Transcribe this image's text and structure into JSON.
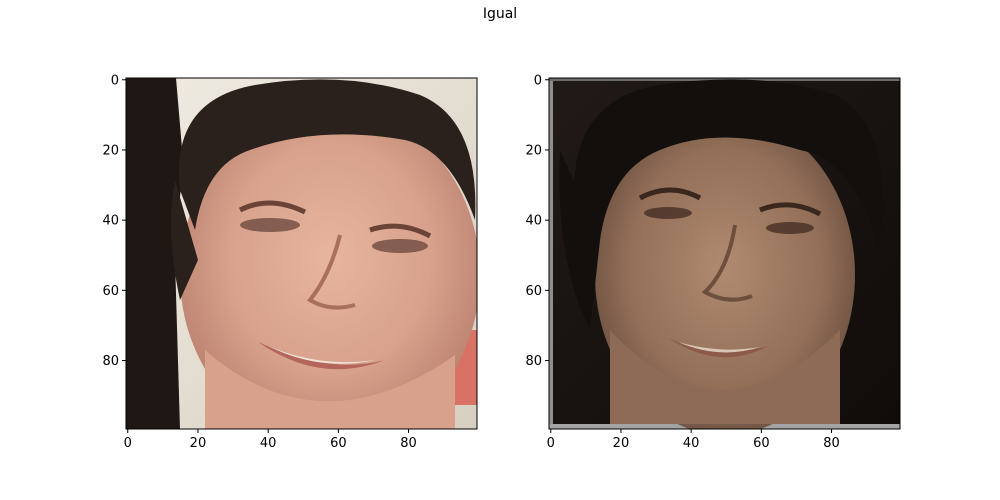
{
  "figure": {
    "title": "Igual"
  },
  "panels": [
    {
      "name": "left",
      "image_description_icon": "face-photo-icon",
      "x_ticks": [
        "0",
        "20",
        "40",
        "60",
        "80"
      ],
      "y_ticks": [
        "0",
        "20",
        "40",
        "60",
        "80"
      ],
      "x_values": [
        0,
        20,
        40,
        60,
        80
      ],
      "y_values": [
        0,
        20,
        40,
        60,
        80
      ],
      "xlim": [
        -0.5,
        99.5
      ],
      "ylim": [
        99.5,
        -0.5
      ],
      "palette": {
        "background": "#e9e4d8",
        "hair": "#2a211d",
        "skin": "#d9a890",
        "skin_shadow": "#b47c6a",
        "lips": "#b4665d",
        "teeth": "#efe2d8",
        "dark_left": "#1c1513",
        "accent_right": "#d76f61"
      }
    },
    {
      "name": "right",
      "image_description_icon": "face-photo-icon",
      "x_ticks": [
        "0",
        "20",
        "40",
        "60",
        "80"
      ],
      "y_ticks": [
        "0",
        "20",
        "40",
        "60",
        "80"
      ],
      "x_values": [
        0,
        20,
        40,
        60,
        80
      ],
      "y_values": [
        0,
        20,
        40,
        60,
        80
      ],
      "xlim": [
        -0.5,
        99.5
      ],
      "ylim": [
        99.5,
        -0.5
      ],
      "palette": {
        "background": "#17120f",
        "hair": "#130f0c",
        "skin": "#9c7a61",
        "skin_shadow": "#6f5343",
        "lips": "#8d5a4a",
        "teeth": "#d7c6b5",
        "border": "#8f8f8f"
      }
    }
  ]
}
